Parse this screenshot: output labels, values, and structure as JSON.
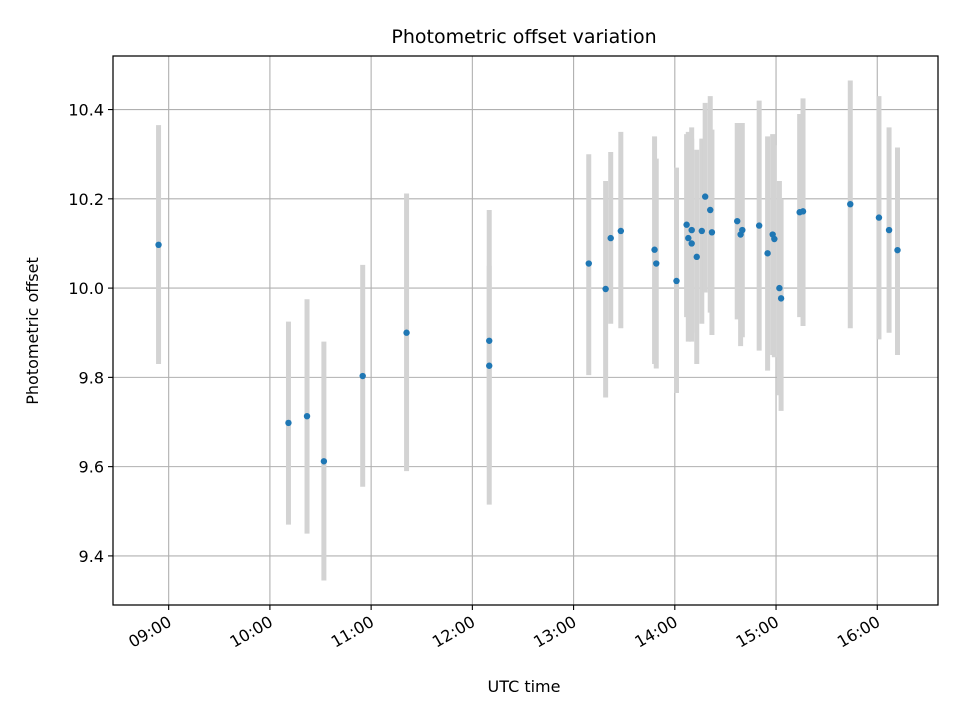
{
  "chart_data": {
    "type": "scatter",
    "title": "Photometric offset variation",
    "xlabel": "UTC time",
    "ylabel": "Photometric offset",
    "x_tick_labels": [
      "09:00",
      "10:00",
      "11:00",
      "12:00",
      "13:00",
      "14:00",
      "15:00",
      "16:00"
    ],
    "y_tick_labels": [
      "9.4",
      "9.6",
      "9.8",
      "10.0",
      "10.2",
      "10.4"
    ],
    "x_ticks": [
      "09:00",
      "10:00",
      "11:00",
      "12:00",
      "13:00",
      "14:00",
      "15:00",
      "16:00"
    ],
    "y_ticks": [
      9.4,
      9.6,
      9.8,
      10.0,
      10.2,
      10.4
    ],
    "xlim": [
      "08:27",
      "16:36"
    ],
    "ylim": [
      9.29,
      10.52
    ],
    "grid": true,
    "marker_color": "#1f77b4",
    "errorbar_color": "#d3d3d3",
    "points": [
      {
        "t": "08:54",
        "y": 10.097,
        "lo": 9.83,
        "hi": 10.365
      },
      {
        "t": "10:11",
        "y": 9.698,
        "lo": 9.47,
        "hi": 9.925
      },
      {
        "t": "10:22",
        "y": 9.713,
        "lo": 9.45,
        "hi": 9.975
      },
      {
        "t": "10:32",
        "y": 9.612,
        "lo": 9.345,
        "hi": 9.88
      },
      {
        "t": "10:55",
        "y": 9.803,
        "lo": 9.555,
        "hi": 10.052
      },
      {
        "t": "11:21",
        "y": 9.9,
        "lo": 9.59,
        "hi": 10.212
      },
      {
        "t": "12:10",
        "y": 9.882,
        "lo": 9.515,
        "hi": 10.175
      },
      {
        "t": "12:10",
        "y": 9.826,
        "lo": 9.6,
        "hi": 10.05
      },
      {
        "t": "13:09",
        "y": 10.055,
        "lo": 9.805,
        "hi": 10.3
      },
      {
        "t": "13:19",
        "y": 9.998,
        "lo": 9.755,
        "hi": 10.24
      },
      {
        "t": "13:22",
        "y": 10.112,
        "lo": 9.92,
        "hi": 10.305
      },
      {
        "t": "13:28",
        "y": 10.128,
        "lo": 9.91,
        "hi": 10.35
      },
      {
        "t": "13:48",
        "y": 10.086,
        "lo": 9.83,
        "hi": 10.34
      },
      {
        "t": "13:49",
        "y": 10.055,
        "lo": 9.82,
        "hi": 10.29
      },
      {
        "t": "14:01",
        "y": 10.016,
        "lo": 9.765,
        "hi": 10.27
      },
      {
        "t": "14:07",
        "y": 10.142,
        "lo": 9.935,
        "hi": 10.345
      },
      {
        "t": "14:08",
        "y": 10.112,
        "lo": 9.88,
        "hi": 10.35
      },
      {
        "t": "14:10",
        "y": 10.1,
        "lo": 9.88,
        "hi": 10.335
      },
      {
        "t": "14:10",
        "y": 10.13,
        "lo": 9.9,
        "hi": 10.36
      },
      {
        "t": "14:13",
        "y": 10.07,
        "lo": 9.83,
        "hi": 10.31
      },
      {
        "t": "14:16",
        "y": 10.128,
        "lo": 9.92,
        "hi": 10.335
      },
      {
        "t": "14:18",
        "y": 10.205,
        "lo": 9.99,
        "hi": 10.415
      },
      {
        "t": "14:21",
        "y": 10.175,
        "lo": 9.945,
        "hi": 10.43
      },
      {
        "t": "14:22",
        "y": 10.125,
        "lo": 9.895,
        "hi": 10.355
      },
      {
        "t": "14:37",
        "y": 10.15,
        "lo": 9.93,
        "hi": 10.37
      },
      {
        "t": "14:39",
        "y": 10.12,
        "lo": 9.87,
        "hi": 10.37
      },
      {
        "t": "14:40",
        "y": 10.13,
        "lo": 9.89,
        "hi": 10.37
      },
      {
        "t": "14:50",
        "y": 10.14,
        "lo": 9.86,
        "hi": 10.42
      },
      {
        "t": "14:55",
        "y": 10.078,
        "lo": 9.815,
        "hi": 10.34
      },
      {
        "t": "14:58",
        "y": 10.12,
        "lo": 9.85,
        "hi": 10.345
      },
      {
        "t": "14:59",
        "y": 10.11,
        "lo": 9.845,
        "hi": 10.32
      },
      {
        "t": "15:02",
        "y": 10.0,
        "lo": 9.76,
        "hi": 10.24
      },
      {
        "t": "15:03",
        "y": 9.977,
        "lo": 9.725,
        "hi": 10.2
      },
      {
        "t": "15:14",
        "y": 10.17,
        "lo": 9.935,
        "hi": 10.39
      },
      {
        "t": "15:16",
        "y": 10.172,
        "lo": 9.915,
        "hi": 10.425
      },
      {
        "t": "15:44",
        "y": 10.188,
        "lo": 9.91,
        "hi": 10.465
      },
      {
        "t": "16:01",
        "y": 10.158,
        "lo": 9.885,
        "hi": 10.43
      },
      {
        "t": "16:07",
        "y": 10.13,
        "lo": 9.9,
        "hi": 10.36
      },
      {
        "t": "16:12",
        "y": 10.085,
        "lo": 9.85,
        "hi": 10.315
      }
    ]
  }
}
